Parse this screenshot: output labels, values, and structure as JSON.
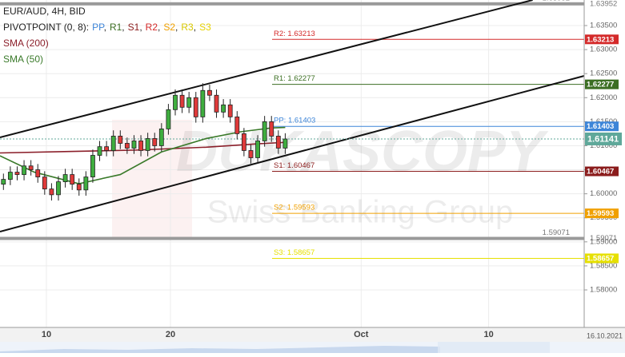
{
  "chart_data": {
    "type": "candlestick",
    "title": "EUR/AUD, 4H, BID",
    "indicator_label": "PIVOTPOINT (0, 8):",
    "pivot_names": [
      {
        "name": "PP",
        "color": "#3d85d8"
      },
      {
        "name": "R1",
        "color": "#3b6e22"
      },
      {
        "name": "S1",
        "color": "#8b1c1c"
      },
      {
        "name": "R2",
        "color": "#d42a2a"
      },
      {
        "name": "S2",
        "color": "#f0a000"
      },
      {
        "name": "R3",
        "color": "#d8c800"
      },
      {
        "name": "S3",
        "color": "#e6d200"
      }
    ],
    "x": [
      1,
      3,
      5,
      7,
      9,
      11,
      13,
      15,
      17,
      19,
      21,
      23,
      25,
      27,
      29,
      31,
      33,
      35,
      37,
      39,
      41,
      43,
      45,
      47,
      49,
      51,
      53,
      55,
      57,
      59,
      61,
      63,
      65,
      67,
      69,
      71,
      73,
      75,
      77,
      79,
      81,
      83
    ],
    "open": [
      1.602,
      1.603,
      1.6045,
      1.604,
      1.6058,
      1.605,
      1.6035,
      1.601,
      1.5998,
      1.6025,
      1.604,
      1.602,
      1.6008,
      1.6035,
      1.608,
      1.6098,
      1.609,
      1.612,
      1.6105,
      1.6095,
      1.611,
      1.609,
      1.6115,
      1.61,
      1.6135,
      1.6175,
      1.6205,
      1.618,
      1.62,
      1.616,
      1.6215,
      1.6205,
      1.617,
      1.6185,
      1.616,
      1.6125,
      1.609,
      1.6075,
      1.611,
      1.615,
      1.612,
      1.6095
    ],
    "high": [
      1.6042,
      1.6057,
      1.6057,
      1.607,
      1.607,
      1.6062,
      1.6047,
      1.6022,
      1.6037,
      1.6052,
      1.6052,
      1.6032,
      1.6047,
      1.6092,
      1.611,
      1.611,
      1.6132,
      1.6132,
      1.6117,
      1.6122,
      1.6122,
      1.6127,
      1.6127,
      1.6147,
      1.6187,
      1.6217,
      1.6217,
      1.6212,
      1.6212,
      1.623,
      1.6227,
      1.6217,
      1.6197,
      1.6197,
      1.6172,
      1.6137,
      1.6102,
      1.6122,
      1.6162,
      1.6162,
      1.6132,
      1.6126
    ],
    "low": [
      1.6008,
      1.6018,
      1.6028,
      1.6028,
      1.6038,
      1.6023,
      1.5998,
      1.5986,
      1.5986,
      1.6013,
      1.6008,
      1.5996,
      1.5996,
      1.6023,
      1.6068,
      1.6078,
      1.6078,
      1.6093,
      1.6083,
      1.6083,
      1.6078,
      1.6078,
      1.6088,
      1.6088,
      1.6123,
      1.6163,
      1.6168,
      1.6168,
      1.6148,
      1.6148,
      1.6193,
      1.6158,
      1.6158,
      1.6148,
      1.6113,
      1.6078,
      1.6063,
      1.6063,
      1.6098,
      1.6108,
      1.6083,
      1.6083
    ],
    "close": [
      1.603,
      1.6045,
      1.604,
      1.6058,
      1.605,
      1.6035,
      1.601,
      1.5998,
      1.6025,
      1.604,
      1.602,
      1.6008,
      1.6035,
      1.608,
      1.6098,
      1.609,
      1.612,
      1.6105,
      1.6095,
      1.611,
      1.609,
      1.6115,
      1.61,
      1.6135,
      1.6175,
      1.6205,
      1.618,
      1.62,
      1.616,
      1.6215,
      1.6205,
      1.617,
      1.6185,
      1.616,
      1.6125,
      1.609,
      1.6075,
      1.611,
      1.615,
      1.612,
      1.6095,
      1.6114
    ],
    "up_color": "#3fae3f",
    "down_color": "#e03a3a",
    "lines": [
      {
        "name": "SMA (200)",
        "color": "#8b1f2a",
        "x": [
          0,
          20,
          40,
          60,
          75,
          83
        ],
        "values": [
          1.6085,
          1.6088,
          1.6091,
          1.6097,
          1.6104,
          1.6107
        ]
      },
      {
        "name": "SMA (50)",
        "color": "#3a7a2a",
        "x": [
          0,
          10,
          23,
          35,
          47,
          60,
          70,
          79,
          83
        ],
        "values": [
          1.6079,
          1.6045,
          1.6021,
          1.604,
          1.6087,
          1.6115,
          1.6129,
          1.6137,
          1.6138
        ]
      }
    ],
    "trend_lines": [
      {
        "color": "#111111",
        "x": [
          0,
          155
        ],
        "values": [
          1.61174,
          1.64032
        ]
      },
      {
        "color": "#111111",
        "x": [
          0,
          170
        ],
        "values": [
          1.59213,
          1.62453
        ]
      }
    ],
    "levels": [
      {
        "label": "R2: 1.63213",
        "value": 1.63213,
        "color": "#d42a2a"
      },
      {
        "label": "R1: 1.62277",
        "value": 1.62277,
        "color": "#3b6e22"
      },
      {
        "label": "PP: 1.61403",
        "value": 1.61403,
        "color": "#3d85d8"
      },
      {
        "label": "S1: 1.60467",
        "value": 1.60467,
        "color": "#8b1c1c"
      },
      {
        "label": "S2: 1.59593",
        "value": 1.59593,
        "color": "#f0a000"
      },
      {
        "label": "S3: 1.58657",
        "value": 1.58657,
        "color": "#e6e000"
      }
    ],
    "ref_lines": [
      {
        "value": 1.63952,
        "color": "#9a9a9a"
      },
      {
        "value": 1.59071,
        "color": "#9a9a9a"
      }
    ],
    "current_price": 1.61141,
    "current_color": "#5fa89a",
    "xlim": [
      0,
      170
    ],
    "xticks": [
      {
        "value": 13.5,
        "label": "10"
      },
      {
        "value": 49.6,
        "label": "20"
      },
      {
        "value": 105.1,
        "label": "Oct"
      },
      {
        "value": 142.2,
        "label": "10"
      }
    ],
    "ylim": [
      1.57219,
      1.64032
    ],
    "yticks": [
      {
        "value": 1.58,
        "label": "1.58000"
      },
      {
        "value": 1.585,
        "label": "1.58500"
      },
      {
        "value": 1.59,
        "label": "1.59000"
      },
      {
        "value": 1.595,
        "label": "1.59500"
      },
      {
        "value": 1.6,
        "label": "1.60000"
      },
      {
        "value": 1.605,
        "label": "1.60500"
      },
      {
        "value": 1.61,
        "label": "1.61000"
      },
      {
        "value": 1.615,
        "label": "1.61500"
      },
      {
        "value": 1.62,
        "label": "1.62000"
      },
      {
        "value": 1.625,
        "label": "1.62500"
      },
      {
        "value": 1.63,
        "label": "1.63000"
      },
      {
        "value": 1.635,
        "label": "1.63500"
      }
    ],
    "grid": true,
    "watermark": [
      "DUKASCOPY",
      "Swiss Banking Group"
    ],
    "date": "16.10.2021"
  }
}
